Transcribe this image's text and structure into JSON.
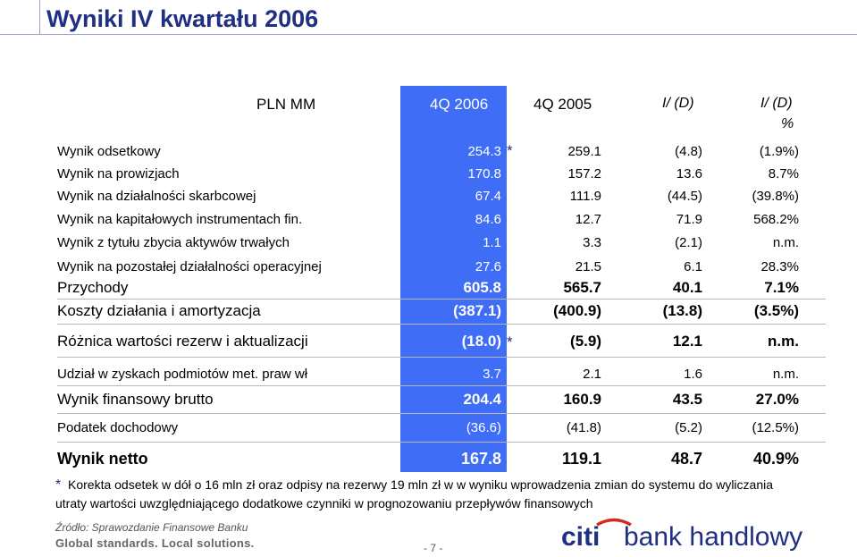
{
  "title": "Wyniki IV kwartału 2006",
  "headers": {
    "currency": "PLN MM",
    "col1": "4Q 2006",
    "col2": "4Q 2005",
    "col3": "I/ (D)",
    "col4_line1": "I/ (D)",
    "col4_line2": "%"
  },
  "rows": [
    {
      "label": "Wynik odsetkowy",
      "v1": "254.3",
      "star": "*",
      "v2": "259.1",
      "v3": "(4.8)",
      "v4": "(1.9%)"
    },
    {
      "label": "Wynik na prowizjach",
      "v1": "170.8",
      "v2": "157.2",
      "v3": "13.6",
      "v4": "8.7%"
    },
    {
      "label": "Wynik na działalności skarbcowej",
      "v1": "67.4",
      "v2": "111.9",
      "v3": "(44.5)",
      "v4": "(39.8%)"
    },
    {
      "label": "Wynik na kapitałowych instrumentach fin.",
      "v1": "84.6",
      "v2": "12.7",
      "v3": "71.9",
      "v4": "568.2%"
    },
    {
      "label": "Wynik z tytułu zbycia aktywów trwałych",
      "v1": "1.1",
      "v2": "3.3",
      "v3": "(2.1)",
      "v4": "n.m."
    },
    {
      "label": "Wynik na pozostałej działalności operacyjnej",
      "v1": "27.6",
      "v2": "21.5",
      "v3": "6.1",
      "v4": "28.3%"
    },
    {
      "label": "Przychody",
      "v1": "605.8",
      "v2": "565.7",
      "v3": "40.1",
      "v4": "7.1%"
    },
    {
      "label": "Koszty działania i amortyzacja",
      "v1": "(387.1)",
      "v2": "(400.9)",
      "v3": "(13.8)",
      "v4": "(3.5%)"
    },
    {
      "label": "Różnica wartości rezerw i aktualizacji",
      "v1": "(18.0)",
      "star": "*",
      "v2": "(5.9)",
      "v3": "12.1",
      "v4": "n.m."
    },
    {
      "label": "Udział w zyskach podmiotów met. praw wł",
      "v1": "3.7",
      "v2": "2.1",
      "v3": "1.6",
      "v4": "n.m."
    },
    {
      "label": "Wynik finansowy brutto",
      "v1": "204.4",
      "v2": "160.9",
      "v3": "43.5",
      "v4": "27.0%"
    },
    {
      "label": "Podatek dochodowy",
      "v1": "(36.6)",
      "v2": "(41.8)",
      "v3": "(5.2)",
      "v4": "(12.5%)"
    },
    {
      "label": "Wynik netto",
      "v1": "167.8",
      "v2": "119.1",
      "v3": "48.7",
      "v4": "40.9%"
    }
  ],
  "footnote": {
    "star": "*",
    "line1": "Korekta odsetek w dół o 16 mln zł oraz odpisy na rezerwy 19 mln zł w w wyniku wprowadzenia zmian do systemu do wyliczania",
    "line2": "utraty wartości uwzględniającego dodatkowe czynniki w prognozowaniu przepływów finansowych"
  },
  "source": "Źródło: Sprawozdanie Finansowe Banku",
  "tagline": "Global standards. Local solutions.",
  "page_number": "- 7 -",
  "logo": {
    "part1": "citi",
    "part2": "bank handlowy"
  },
  "colors": {
    "title": "#1f2f82",
    "highlight_column": "#3f6df5",
    "logo_blue": "#1f2f82",
    "logo_red": "#d52b1e"
  }
}
